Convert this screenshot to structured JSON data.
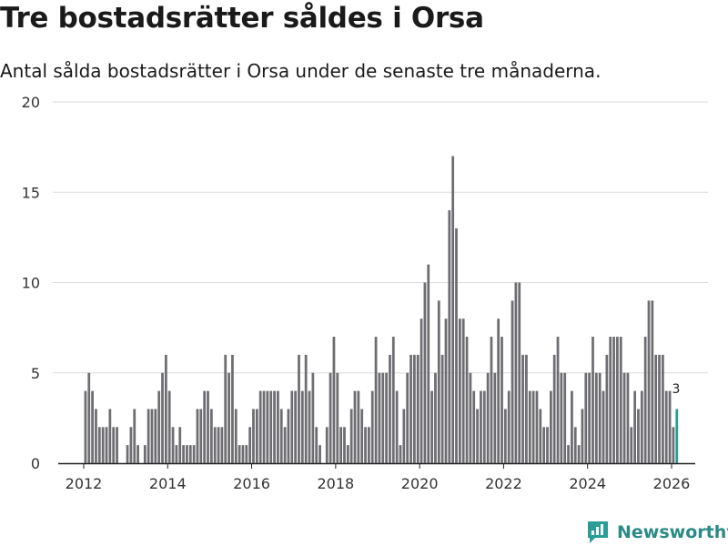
{
  "chart_data": {
    "type": "bar",
    "title": "Tre bostadsrätter såldes i Orsa",
    "subtitle": "Antal sålda bostadsrätter i Orsa under de senaste tre månaderna.",
    "xlabel": "",
    "ylabel": "",
    "ylim": [
      0,
      20
    ],
    "yticks": [
      0,
      5,
      10,
      15,
      20
    ],
    "xticks": [
      2012,
      2014,
      2016,
      2018,
      2020,
      2022,
      2024,
      2026
    ],
    "x_start": "2012-01",
    "bar_color": "#6e6d72",
    "highlight_color": "#2a9d96",
    "last_value_label": "3",
    "values": [
      4,
      5,
      4,
      3,
      2,
      2,
      2,
      3,
      2,
      2,
      0,
      0,
      1,
      2,
      3,
      1,
      0,
      1,
      3,
      3,
      3,
      4,
      5,
      6,
      4,
      2,
      1,
      2,
      1,
      1,
      1,
      1,
      3,
      3,
      4,
      4,
      3,
      2,
      2,
      2,
      6,
      5,
      6,
      3,
      1,
      1,
      1,
      2,
      3,
      3,
      4,
      4,
      4,
      4,
      4,
      4,
      3,
      2,
      3,
      4,
      4,
      6,
      4,
      6,
      4,
      5,
      2,
      1,
      0,
      2,
      5,
      7,
      5,
      2,
      2,
      1,
      3,
      4,
      4,
      3,
      2,
      2,
      4,
      7,
      5,
      5,
      5,
      6,
      7,
      4,
      1,
      3,
      5,
      6,
      6,
      6,
      8,
      10,
      11,
      4,
      5,
      9,
      6,
      8,
      14,
      17,
      13,
      8,
      8,
      7,
      5,
      4,
      3,
      4,
      4,
      5,
      7,
      5,
      8,
      7,
      3,
      4,
      9,
      10,
      10,
      6,
      6,
      4,
      4,
      4,
      3,
      2,
      2,
      4,
      6,
      7,
      5,
      5,
      1,
      4,
      2,
      1,
      3,
      5,
      5,
      7,
      5,
      5,
      4,
      6,
      7,
      7,
      7,
      7,
      5,
      5,
      2,
      4,
      3,
      4,
      7,
      9,
      9,
      6,
      6,
      6,
      4,
      4,
      2,
      3
    ]
  },
  "brand": {
    "name": "Newsworthy"
  }
}
